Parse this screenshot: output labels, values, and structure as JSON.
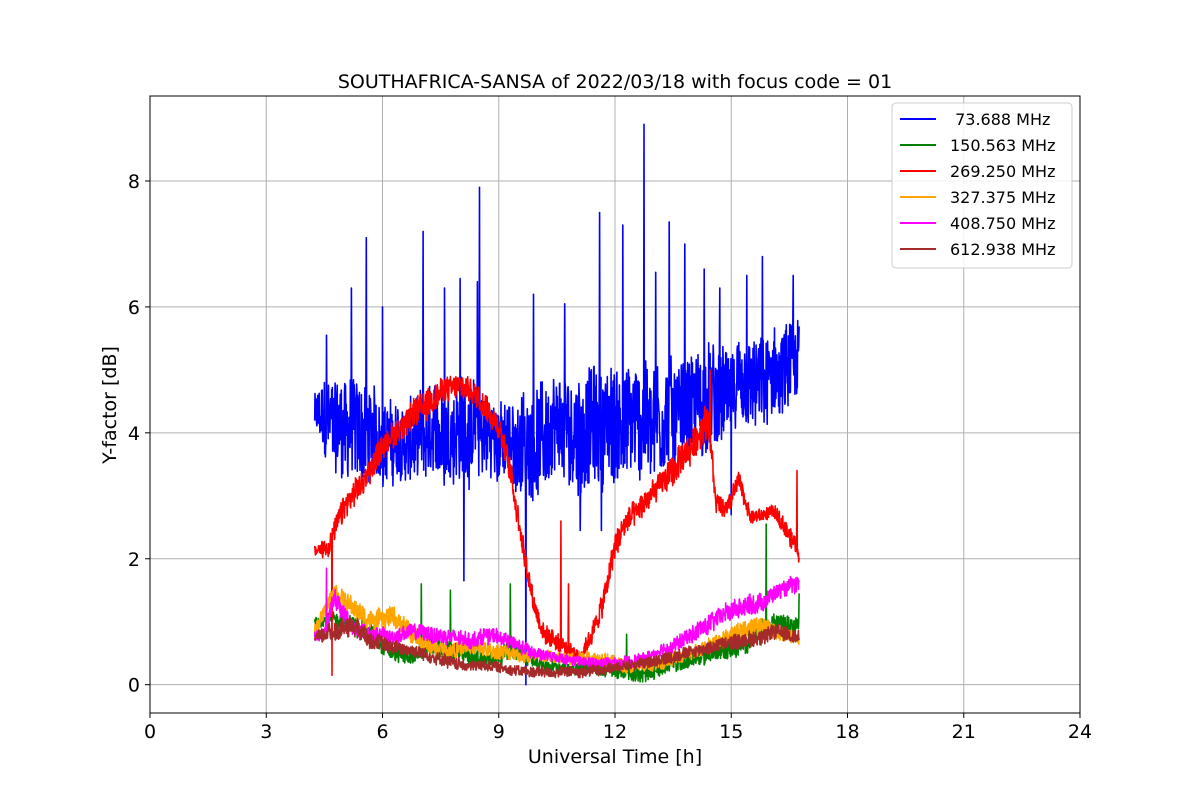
{
  "chart_data": {
    "type": "line",
    "title": "SOUTHAFRICA-SANSA of 2022/03/18 with focus code = 01",
    "xlabel": "Universal Time [h]",
    "ylabel": "Y-factor [dB]",
    "xlim": [
      0,
      24
    ],
    "ylim": [
      -0.45,
      9.35
    ],
    "xticks": [
      0,
      3,
      6,
      9,
      12,
      15,
      18,
      21,
      24
    ],
    "yticks": [
      0,
      2,
      4,
      6,
      8
    ],
    "grid": true,
    "legend_position": "top-right",
    "series": [
      {
        "name": " 73.688 MHz",
        "color": "#0000ff",
        "x": [
          4.25,
          4.5,
          5.0,
          5.5,
          6.0,
          6.5,
          7.0,
          7.5,
          8.0,
          8.5,
          9.0,
          9.5,
          10.0,
          10.5,
          11.0,
          11.5,
          12.0,
          12.5,
          13.0,
          13.5,
          14.0,
          14.5,
          15.0,
          15.5,
          16.0,
          16.5,
          16.75
        ],
        "y": [
          4.3,
          4.2,
          4.1,
          4.0,
          3.9,
          3.8,
          3.9,
          4.0,
          4.1,
          4.0,
          3.9,
          3.8,
          3.9,
          4.0,
          4.0,
          4.1,
          4.1,
          4.2,
          4.2,
          4.3,
          4.4,
          4.5,
          4.6,
          4.7,
          4.8,
          5.0,
          5.1
        ],
        "spread": [
          0.3,
          0.6,
          0.8,
          0.8,
          0.6,
          0.6,
          0.7,
          0.7,
          0.8,
          0.7,
          0.6,
          0.7,
          0.8,
          0.8,
          0.9,
          0.9,
          0.9,
          0.9,
          0.9,
          0.8,
          0.8,
          0.8,
          0.7,
          0.7,
          0.7,
          0.7,
          0.6
        ],
        "spikes": [
          [
            4.55,
            5.55
          ],
          [
            5.2,
            6.3
          ],
          [
            5.58,
            7.1
          ],
          [
            6.0,
            6.0
          ],
          [
            7.05,
            7.2
          ],
          [
            7.6,
            6.3
          ],
          [
            8.0,
            6.45
          ],
          [
            8.5,
            7.9
          ],
          [
            8.45,
            6.4
          ],
          [
            9.9,
            6.2
          ],
          [
            10.7,
            6.05
          ],
          [
            11.6,
            7.5
          ],
          [
            12.2,
            7.3
          ],
          [
            12.75,
            8.9
          ],
          [
            13.05,
            6.55
          ],
          [
            13.4,
            7.35
          ],
          [
            13.8,
            7.0
          ],
          [
            14.3,
            6.6
          ],
          [
            14.7,
            6.3
          ],
          [
            15.4,
            6.5
          ],
          [
            15.8,
            6.8
          ],
          [
            16.6,
            6.5
          ],
          [
            8.1,
            1.65
          ],
          [
            9.7,
            0.0
          ],
          [
            11.1,
            2.45
          ],
          [
            11.65,
            2.45
          ],
          [
            15.0,
            2.7
          ]
        ]
      },
      {
        "name": "150.563 MHz",
        "color": "#008000",
        "x": [
          4.25,
          4.75,
          5.25,
          5.75,
          6.25,
          6.75,
          7.25,
          7.75,
          8.25,
          8.75,
          9.25,
          9.75,
          10.25,
          10.75,
          11.25,
          11.75,
          12.25,
          12.75,
          13.25,
          13.75,
          14.25,
          14.75,
          15.25,
          15.75,
          16.25,
          16.75
        ],
        "y": [
          1.0,
          1.05,
          0.95,
          0.8,
          0.5,
          0.45,
          0.6,
          0.55,
          0.45,
          0.4,
          0.55,
          0.45,
          0.3,
          0.25,
          0.3,
          0.25,
          0.2,
          0.15,
          0.3,
          0.35,
          0.45,
          0.55,
          0.6,
          0.85,
          1.0,
          0.95
        ],
        "spread": [
          0.08,
          0.12,
          0.15,
          0.15,
          0.12,
          0.12,
          0.15,
          0.15,
          0.12,
          0.12,
          0.15,
          0.12,
          0.1,
          0.1,
          0.12,
          0.12,
          0.12,
          0.12,
          0.12,
          0.12,
          0.12,
          0.15,
          0.15,
          0.15,
          0.15,
          0.12
        ],
        "spikes": [
          [
            7.0,
            1.6
          ],
          [
            7.75,
            1.5
          ],
          [
            9.3,
            1.6
          ],
          [
            12.3,
            0.8
          ],
          [
            15.9,
            2.55
          ],
          [
            16.75,
            1.45
          ]
        ]
      },
      {
        "name": "269.250 MHz",
        "color": "#ff0000",
        "x": [
          4.25,
          4.6,
          5.0,
          5.5,
          6.0,
          6.5,
          7.0,
          7.5,
          8.0,
          8.5,
          9.0,
          9.3,
          9.6,
          9.9,
          10.2,
          10.5,
          10.8,
          11.1,
          11.4,
          11.7,
          12.0,
          12.3,
          12.6,
          12.9,
          13.2,
          13.5,
          13.8,
          14.1,
          14.4,
          14.6,
          14.9,
          15.2,
          15.5,
          15.8,
          16.1,
          16.4,
          16.75
        ],
        "y": [
          2.1,
          2.2,
          2.8,
          3.2,
          3.8,
          4.1,
          4.4,
          4.65,
          4.75,
          4.6,
          4.1,
          3.4,
          2.3,
          1.3,
          0.75,
          0.7,
          0.55,
          0.45,
          0.8,
          1.3,
          2.2,
          2.6,
          2.75,
          3.0,
          3.2,
          3.4,
          3.6,
          3.9,
          4.3,
          2.9,
          2.8,
          3.25,
          2.65,
          2.7,
          2.75,
          2.5,
          2.1
        ],
        "spread": [
          0.1,
          0.15,
          0.2,
          0.2,
          0.2,
          0.2,
          0.25,
          0.2,
          0.2,
          0.2,
          0.2,
          0.2,
          0.2,
          0.15,
          0.15,
          0.15,
          0.1,
          0.1,
          0.15,
          0.2,
          0.2,
          0.2,
          0.2,
          0.2,
          0.2,
          0.25,
          0.25,
          0.25,
          0.3,
          0.15,
          0.15,
          0.15,
          0.1,
          0.1,
          0.1,
          0.15,
          0.15
        ],
        "spikes": [
          [
            4.7,
            0.15
          ],
          [
            10.6,
            2.6
          ],
          [
            10.8,
            1.6
          ],
          [
            14.45,
            5.0
          ],
          [
            16.7,
            3.4
          ]
        ]
      },
      {
        "name": "327.375 MHz",
        "color": "#ffa500",
        "x": [
          4.25,
          4.75,
          5.25,
          5.75,
          6.25,
          6.75,
          7.25,
          7.75,
          8.25,
          8.75,
          9.25,
          9.75,
          10.25,
          10.75,
          11.25,
          11.75,
          12.25,
          12.75,
          13.25,
          13.75,
          14.25,
          14.75,
          15.25,
          15.75,
          16.25,
          16.75
        ],
        "y": [
          0.85,
          1.5,
          1.2,
          1.0,
          1.1,
          0.8,
          0.6,
          0.55,
          0.6,
          0.55,
          0.5,
          0.45,
          0.45,
          0.4,
          0.45,
          0.4,
          0.3,
          0.3,
          0.35,
          0.45,
          0.6,
          0.7,
          0.85,
          0.95,
          0.8,
          0.75
        ],
        "spread": [
          0.1,
          0.15,
          0.15,
          0.15,
          0.15,
          0.15,
          0.12,
          0.12,
          0.12,
          0.12,
          0.12,
          0.1,
          0.1,
          0.1,
          0.1,
          0.1,
          0.1,
          0.1,
          0.1,
          0.1,
          0.12,
          0.12,
          0.15,
          0.15,
          0.12,
          0.1
        ],
        "spikes": []
      },
      {
        "name": "408.750 MHz",
        "color": "#ff00ff",
        "x": [
          4.25,
          4.5,
          4.75,
          5.25,
          5.75,
          6.25,
          6.75,
          7.25,
          7.75,
          8.25,
          8.75,
          9.25,
          9.75,
          10.25,
          10.75,
          11.25,
          11.75,
          12.25,
          12.75,
          13.25,
          13.75,
          14.25,
          14.75,
          15.25,
          15.75,
          16.25,
          16.75
        ],
        "y": [
          0.75,
          0.8,
          1.4,
          0.9,
          0.8,
          0.75,
          0.85,
          0.8,
          0.75,
          0.7,
          0.8,
          0.7,
          0.55,
          0.45,
          0.4,
          0.35,
          0.35,
          0.35,
          0.4,
          0.55,
          0.7,
          0.9,
          1.1,
          1.25,
          1.3,
          1.5,
          1.6
        ],
        "spread": [
          0.08,
          0.1,
          0.15,
          0.12,
          0.12,
          0.12,
          0.12,
          0.12,
          0.12,
          0.12,
          0.12,
          0.1,
          0.1,
          0.08,
          0.08,
          0.08,
          0.08,
          0.08,
          0.1,
          0.1,
          0.12,
          0.15,
          0.15,
          0.15,
          0.15,
          0.12,
          0.12
        ],
        "spikes": [
          [
            4.55,
            1.85
          ]
        ]
      },
      {
        "name": "612.938 MHz",
        "color": "#a52a2a",
        "x": [
          4.25,
          4.75,
          5.25,
          5.75,
          6.25,
          6.75,
          7.25,
          7.75,
          8.25,
          8.75,
          9.25,
          9.75,
          10.25,
          10.75,
          11.25,
          11.75,
          12.25,
          12.75,
          13.25,
          13.75,
          14.25,
          14.75,
          15.25,
          15.75,
          16.25,
          16.75
        ],
        "y": [
          0.75,
          0.85,
          0.95,
          0.7,
          0.6,
          0.55,
          0.45,
          0.35,
          0.3,
          0.3,
          0.25,
          0.2,
          0.2,
          0.2,
          0.2,
          0.25,
          0.3,
          0.35,
          0.4,
          0.5,
          0.55,
          0.65,
          0.7,
          0.75,
          0.85,
          0.75
        ],
        "spread": [
          0.1,
          0.15,
          0.15,
          0.12,
          0.1,
          0.1,
          0.1,
          0.1,
          0.08,
          0.08,
          0.08,
          0.08,
          0.08,
          0.08,
          0.08,
          0.08,
          0.08,
          0.08,
          0.1,
          0.1,
          0.1,
          0.1,
          0.12,
          0.12,
          0.12,
          0.1
        ],
        "spikes": []
      }
    ]
  }
}
